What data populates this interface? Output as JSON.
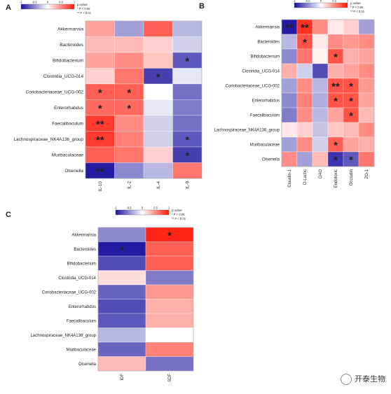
{
  "colors": {
    "neg": "#1a0f9e",
    "mid": "#ffffff",
    "pos": "#ff1a0a"
  },
  "legend": {
    "ticks": [
      "-1",
      "-0.5",
      "0",
      "0.5",
      "1"
    ],
    "title": "p.value",
    "note1": "* P < 0.05",
    "note2": "** P < 0.01"
  },
  "watermark": "开泰生物",
  "chart_data": [
    {
      "panel": "A",
      "type": "heatmap",
      "rows": [
        "Akkermansia",
        "Bacteroides",
        "Bifidobacterium",
        "Clostridia_UCG-014",
        "Coriobacteriaceae_UCG-002",
        "Enterorhabdus",
        "Faecalibaculum",
        "Lachnospiraceae_NK4A136_group",
        "Muribaculaceae",
        "Olsenella"
      ],
      "cols": [
        "IL-10",
        "IL-2",
        "IL-4",
        "IL-9"
      ],
      "values": [
        [
          0.4,
          -0.4,
          0.7,
          -0.3
        ],
        [
          0.3,
          0.3,
          0.2,
          -0.2
        ],
        [
          0.4,
          0.5,
          0.25,
          -0.7
        ],
        [
          0.2,
          0.6,
          -0.8,
          -0.1
        ],
        [
          0.7,
          0.7,
          0.0,
          -0.6
        ],
        [
          0.65,
          0.65,
          -0.1,
          -0.55
        ],
        [
          0.85,
          0.5,
          -0.2,
          -0.6
        ],
        [
          0.85,
          0.55,
          -0.2,
          -0.7
        ],
        [
          0.7,
          0.6,
          0.2,
          -0.8
        ],
        [
          -0.95,
          -0.5,
          -0.3,
          0.6
        ]
      ],
      "stars": [
        [
          "",
          "",
          "",
          ""
        ],
        [
          "",
          "",
          "",
          ""
        ],
        [
          "",
          "",
          "",
          "*"
        ],
        [
          "",
          "",
          "*",
          ""
        ],
        [
          "*",
          "*",
          "",
          ""
        ],
        [
          "*",
          "*",
          "",
          ""
        ],
        [
          "**",
          "",
          "",
          ""
        ],
        [
          "**",
          "",
          "",
          "*"
        ],
        [
          "",
          "",
          "",
          "*"
        ],
        [
          "**",
          "",
          "",
          ""
        ]
      ],
      "range": [
        -1,
        1
      ]
    },
    {
      "panel": "B",
      "type": "heatmap",
      "rows": [
        "Akkermansia",
        "Bacteroides",
        "Bifidobacterium",
        "Clostridia_UCG-014",
        "Coriobacteriaceae_UCG-002",
        "Enterorhabdus",
        "Faecalibaculum",
        "Lachnospiraceae_NK4A136_group",
        "Muribaculaceae",
        "Olsenella"
      ],
      "cols": [
        "Claudin-1",
        "D-Lactic",
        "DAO",
        "Endotoxic",
        "Occludin",
        "ZO-1"
      ],
      "values": [
        [
          -0.95,
          0.9,
          0.5,
          0.1,
          0.2,
          -0.4
        ],
        [
          -0.3,
          0.75,
          0.1,
          0.5,
          0.45,
          0.5
        ],
        [
          -0.5,
          0.6,
          0.05,
          0.75,
          0.35,
          0.4
        ],
        [
          0.35,
          -0.2,
          -0.75,
          0.35,
          0.4,
          0.5
        ],
        [
          -0.4,
          0.5,
          -0.3,
          0.75,
          0.75,
          0.45
        ],
        [
          -0.5,
          0.55,
          -0.35,
          0.75,
          0.75,
          0.4
        ],
        [
          -0.55,
          0.5,
          -0.3,
          0.4,
          0.75,
          0.3
        ],
        [
          0.1,
          0.2,
          -0.25,
          0.25,
          0.3,
          0.5
        ],
        [
          -0.4,
          0.5,
          -0.2,
          0.7,
          0.4,
          0.35
        ],
        [
          0.5,
          -0.4,
          0.3,
          -0.85,
          -0.7,
          0.6
        ]
      ],
      "stars": [
        [
          "**",
          "**",
          "",
          "",
          "",
          ""
        ],
        [
          "",
          "*",
          "",
          "",
          "",
          ""
        ],
        [
          "",
          "",
          "",
          "*",
          "",
          ""
        ],
        [
          "",
          "",
          "",
          "",
          "",
          ""
        ],
        [
          "",
          "",
          "",
          "**",
          "*",
          ""
        ],
        [
          "",
          "",
          "",
          "*",
          "*",
          ""
        ],
        [
          "",
          "",
          "",
          "",
          "*",
          ""
        ],
        [
          "",
          "",
          "",
          "",
          "",
          ""
        ],
        [
          "",
          "",
          "",
          "*",
          "",
          ""
        ],
        [
          "",
          "",
          "",
          "*",
          "*",
          ""
        ]
      ],
      "range": [
        -1,
        1
      ]
    },
    {
      "panel": "C",
      "type": "heatmap",
      "rows": [
        "Akkermansia",
        "Bacteroides",
        "Bifidobacterium",
        "Clostridia_UCG-014",
        "Coriobacteriaceae_UCG-002",
        "Enterorhabdus",
        "Faecalibaculum",
        "Lachnospiraceae_NK4A136_group",
        "Muribaculaceae",
        "Olsenella"
      ],
      "cols": [
        "IDF",
        "SDF"
      ],
      "values": [
        [
          -0.5,
          0.95
        ],
        [
          -0.95,
          0.7
        ],
        [
          -0.75,
          0.7
        ],
        [
          0.15,
          -0.55
        ],
        [
          -0.65,
          0.45
        ],
        [
          -0.75,
          0.35
        ],
        [
          -0.7,
          0.35
        ],
        [
          -0.3,
          0.0
        ],
        [
          -0.65,
          0.55
        ],
        [
          0.3,
          -0.6
        ]
      ],
      "stars": [
        [
          "",
          "*"
        ],
        [
          "*",
          ""
        ],
        [
          "",
          ""
        ],
        [
          "",
          ""
        ],
        [
          "",
          ""
        ],
        [
          "",
          ""
        ],
        [
          "",
          ""
        ],
        [
          "",
          ""
        ],
        [
          "",
          ""
        ],
        [
          "",
          ""
        ]
      ],
      "range": [
        -1,
        1
      ]
    }
  ]
}
